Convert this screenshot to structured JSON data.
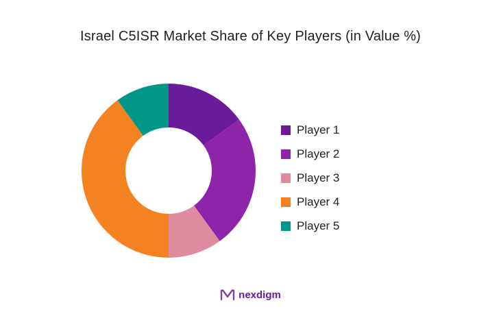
{
  "title": "Israel C5ISR Market Share of Key Players (in Value %)",
  "brand": {
    "logo_icon": "nexdigm-logo-icon",
    "name": "nexdigm",
    "color": "#6a1b9a"
  },
  "chart_data": {
    "type": "pie",
    "variant": "donut",
    "title": "Israel C5ISR Market Share of Key Players (in Value %)",
    "legend_position": "right",
    "categories": [
      "Player 1",
      "Player 2",
      "Player 3",
      "Player 4",
      "Player 5"
    ],
    "values": [
      15,
      25,
      10,
      40,
      10
    ],
    "colors": [
      "#6a1b9a",
      "#8e24aa",
      "#e08aa0",
      "#f58220",
      "#009688"
    ]
  }
}
